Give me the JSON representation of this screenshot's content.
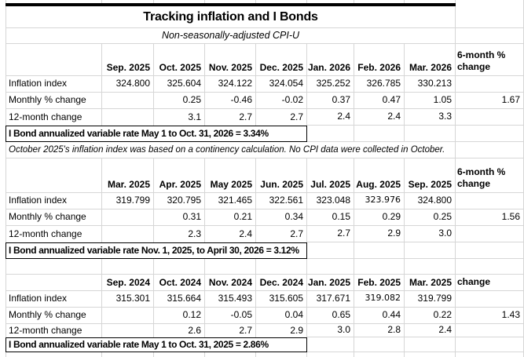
{
  "title": "Tracking inflation and I Bonds",
  "subtitle": "Non-seasonally-adjusted CPI-U",
  "colors": {
    "background": "#ffffff",
    "gridline": "#d6d6d6",
    "border": "#000000",
    "text": "#000000"
  },
  "alt_font_values": [
    "323.976",
    "319.082"
  ],
  "tables": [
    {
      "months": [
        "Sep. 2025",
        "Oct. 2025",
        "Nov. 2025",
        "Dec. 2025",
        "Jan. 2026",
        "Feb. 2026",
        "Mar. 2026"
      ],
      "last_col_header": "6-month % change",
      "rows": [
        {
          "label": "Inflation index",
          "values": [
            "324.800",
            "325.604",
            "324.122",
            "324.054",
            "325.252",
            "326.785",
            "330.213",
            ""
          ]
        },
        {
          "label": "Monthly % change",
          "values": [
            "",
            "0.25",
            "-0.46",
            "-0.02",
            "0.37",
            "0.47",
            "1.05",
            "1.67"
          ]
        },
        {
          "label": "12-month change",
          "values": [
            "",
            "3.1",
            "2.7",
            "2.7",
            "2.4",
            "2.4",
            "3.3",
            ""
          ]
        }
      ],
      "rate_note": "I Bond annualized variable rate May 1 to Oct. 31, 2026 = 3.34%",
      "footnote": "October 2025's inflation index was based on a continency calculation. No CPI data were collected in October."
    },
    {
      "months": [
        "Mar. 2025",
        "Apr. 2025",
        "May 2025",
        "Jun. 2025",
        "Jul. 2025",
        "Aug. 2025",
        "Sep. 2025"
      ],
      "last_col_header": "6-month % change",
      "rows": [
        {
          "label": "Inflation index",
          "values": [
            "319.799",
            "320.795",
            "321.465",
            "322.561",
            "323.048",
            "323.976",
            "324.800",
            ""
          ]
        },
        {
          "label": "Monthly % change",
          "values": [
            "",
            "0.31",
            "0.21",
            "0.34",
            "0.15",
            "0.29",
            "0.25",
            "1.56"
          ]
        },
        {
          "label": "12-month change",
          "values": [
            "",
            "2.3",
            "2.4",
            "2.7",
            "2.7",
            "2.9",
            "3.0",
            ""
          ]
        }
      ],
      "rate_note": "I Bond annualized variable rate Nov. 1, 2025, to April 30, 2026 = 3.12%"
    },
    {
      "months": [
        "Sep. 2024",
        "Oct. 2024",
        "Nov. 2024",
        "Dec. 2024",
        "Jan. 2025",
        "Feb. 2025",
        "Mar. 2025"
      ],
      "last_col_header": "change",
      "rows": [
        {
          "label": "Inflation index",
          "values": [
            "315.301",
            "315.664",
            "315.493",
            "315.605",
            "317.671",
            "319.082",
            "319.799",
            ""
          ]
        },
        {
          "label": "Monthly % change",
          "values": [
            "",
            "0.12",
            "-0.05",
            "0.04",
            "0.65",
            "0.44",
            "0.22",
            "1.43"
          ]
        },
        {
          "label": "12-month change",
          "values": [
            "",
            "2.6",
            "2.7",
            "2.9",
            "3.0",
            "2.8",
            "2.4",
            ""
          ]
        }
      ],
      "rate_note": "I Bond annualized variable rate May 1 to Oct. 31, 2025 = 2.86%"
    }
  ]
}
